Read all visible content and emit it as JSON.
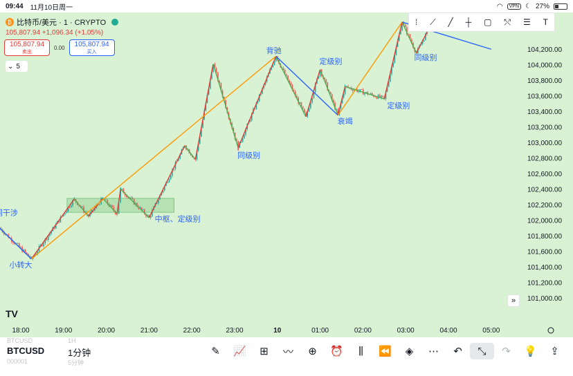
{
  "status_bar": {
    "time": "09:44",
    "date": "11月10日周一",
    "vpn": "VPN",
    "battery": "27%",
    "battery_level": 0.27
  },
  "legend": {
    "coin_glyph": "₿",
    "symbol_title": "比特币/美元 · 1 · CRYPTO",
    "price_line": "105,807.94 +1,096.34 (+1.05%)"
  },
  "trade": {
    "sell_price": "105,807.94",
    "sell_label": "卖出",
    "spread": "0.00",
    "buy_price": "105,807.94",
    "buy_label": "买入"
  },
  "indicator_toggle": {
    "count": "5"
  },
  "colors": {
    "background": "#d9f2d4",
    "up": "#26a69a",
    "down": "#ef5350",
    "pen_green": "#4caf50",
    "pen_red": "#e53935",
    "segment_orange": "#ff9800",
    "segment_blue": "#2962ff",
    "annotation": "#2962ff"
  },
  "chart_data": {
    "type": "candlestick",
    "y_axis_ticks": [
      "104,200.00",
      "104,000.00",
      "103,800.00",
      "103,600.00",
      "103,400.00",
      "103,200.00",
      "103,000.00",
      "102,800.00",
      "102,600.00",
      "102,400.00",
      "102,200.00",
      "102,000.00",
      "101,800.00",
      "101,600.00",
      "101,400.00",
      "101,200.00",
      "101,000.00"
    ],
    "ylim": [
      100900,
      104300
    ],
    "x_axis_ticks": [
      "18:00",
      "19:00",
      "20:00",
      "21:00",
      "22:00",
      "23:00",
      "10",
      "01:00",
      "02:00",
      "03:00",
      "04:00",
      "05:00"
    ],
    "annotations": [
      "同级别",
      "背驰",
      "定级别",
      "衰竭",
      "定级别",
      "同级别",
      "中枢、定级别",
      "同级别",
      "小转大",
      "同干涉"
    ],
    "pivot_box": {
      "low": 102100,
      "high": 102280
    },
    "pen_lines": [
      {
        "t": "17:30",
        "p": 101900
      },
      {
        "t": "18:15",
        "p": 101500
      },
      {
        "t": "19:15",
        "p": 102270
      },
      {
        "t": "19:35",
        "p": 102050
      },
      {
        "t": "19:55",
        "p": 102280
      },
      {
        "t": "20:15",
        "p": 102080
      },
      {
        "t": "20:20",
        "p": 102400
      },
      {
        "t": "21:00",
        "p": 102030
      },
      {
        "t": "21:50",
        "p": 102960
      },
      {
        "t": "22:05",
        "p": 102780
      },
      {
        "t": "22:30",
        "p": 104010
      },
      {
        "t": "23:05",
        "p": 102930
      },
      {
        "t": "23:58",
        "p": 104110
      },
      {
        "t": "00:40",
        "p": 103330
      },
      {
        "t": "01:00",
        "p": 103940
      },
      {
        "t": "01:25",
        "p": 103350
      },
      {
        "t": "01:35",
        "p": 103720
      },
      {
        "t": "02:30",
        "p": 103560
      },
      {
        "t": "02:55",
        "p": 104550
      },
      {
        "t": "03:15",
        "p": 104150
      },
      {
        "t": "03:30",
        "p": 104420
      }
    ],
    "segment_lines": [
      {
        "t": "17:30",
        "p": 101900,
        "color": "blue"
      },
      {
        "t": "18:15",
        "p": 101500,
        "color": "orange"
      },
      {
        "t": "23:58",
        "p": 104110,
        "color": "blue"
      },
      {
        "t": "01:25",
        "p": 103350,
        "color": "orange"
      },
      {
        "t": "02:55",
        "p": 104550,
        "color": "blue"
      },
      {
        "t": "05:00",
        "p": 104200,
        "color": "blue"
      }
    ]
  },
  "toolbar": {
    "symbol": "BTCUSD",
    "symbol_prev": "BTCUSD",
    "symbol_next": "000001",
    "timeframe": "1分钟",
    "timeframe_prev": "1H",
    "timeframe_next": "5分钟"
  }
}
